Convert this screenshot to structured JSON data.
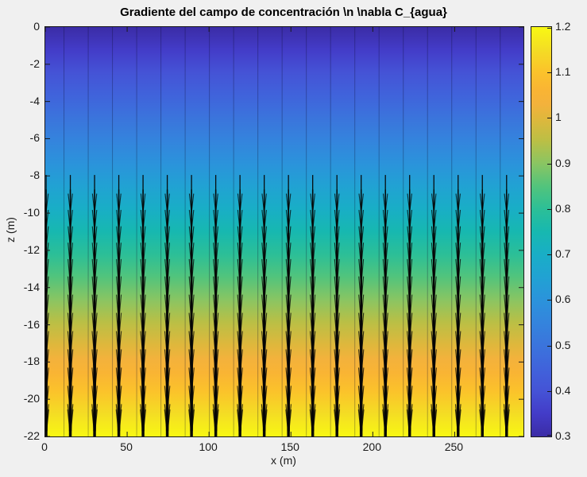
{
  "figure": {
    "background": "#F0F0F0",
    "kind": "MATLAB-style figure"
  },
  "chart_data": {
    "type": "heatmap",
    "overlay": "quiver",
    "title": "Gradiente del campo de concentración \\n \\nabla C_{agua}",
    "xlabel": "x (m)",
    "ylabel": "z (m)",
    "xlim": [
      0,
      292
    ],
    "ylim": [
      -22,
      0
    ],
    "x_ticks": [
      0,
      50,
      100,
      150,
      200,
      250
    ],
    "x_tick_labels": [
      "0",
      "50",
      "100",
      "150",
      "200",
      "250"
    ],
    "y_ticks": [
      0,
      -2,
      -4,
      -6,
      -8,
      -10,
      -12,
      -14,
      -16,
      -18,
      -20,
      -22
    ],
    "y_tick_labels": [
      "0",
      "-2",
      "-4",
      "-6",
      "-8",
      "-10",
      "-12",
      "-14",
      "-16",
      "-18",
      "-20",
      "-22"
    ],
    "heatmap_field": {
      "description": "concentration field, increases linearly with depth",
      "value_at_surface_z0": 0.3,
      "value_at_bottom_z-22": 1.2
    },
    "colorbar": {
      "min": 0.3,
      "max": 1.2,
      "ticks": [
        1.2,
        1.1,
        1.0,
        0.9,
        0.8,
        0.7,
        0.6,
        0.5,
        0.4,
        0.3
      ],
      "tick_labels": [
        "1.2",
        "1.1",
        "1",
        "0.9",
        "0.8",
        "0.7",
        "0.6",
        "0.5",
        "0.4",
        "0.3"
      ],
      "position": "right"
    },
    "colormap": [
      {
        "v": 0.3,
        "c": "#3B2CA6"
      },
      {
        "v": 0.35,
        "c": "#433CC8"
      },
      {
        "v": 0.4,
        "c": "#4553D6"
      },
      {
        "v": 0.45,
        "c": "#4063DB"
      },
      {
        "v": 0.5,
        "c": "#3B74DC"
      },
      {
        "v": 0.55,
        "c": "#3484DD"
      },
      {
        "v": 0.6,
        "c": "#2B93DB"
      },
      {
        "v": 0.65,
        "c": "#21A2D3"
      },
      {
        "v": 0.7,
        "c": "#19AEC6"
      },
      {
        "v": 0.75,
        "c": "#17B8B0"
      },
      {
        "v": 0.8,
        "c": "#2CBF97"
      },
      {
        "v": 0.85,
        "c": "#52C47C"
      },
      {
        "v": 0.9,
        "c": "#8AC562"
      },
      {
        "v": 0.95,
        "c": "#BBBF45"
      },
      {
        "v": 1.0,
        "c": "#E0B73C"
      },
      {
        "v": 1.03,
        "c": "#F3B23C"
      },
      {
        "v": 1.06,
        "c": "#F9B434"
      },
      {
        "v": 1.1,
        "c": "#FBC22B"
      },
      {
        "v": 1.15,
        "c": "#F4DD24"
      },
      {
        "v": 1.2,
        "c": "#F8F813"
      }
    ],
    "quiver": {
      "direction": "downward (toward increasing concentration)",
      "color": "#000000",
      "x_positions_m": [
        0.5,
        15.3,
        30.1,
        44.9,
        59.7,
        74.5,
        89.3,
        104.1,
        118.9,
        133.7,
        148.5,
        163.3,
        178.1,
        192.9,
        207.7,
        222.5,
        237.3,
        252.1,
        266.9,
        281.7
      ],
      "visible_from_depth_m": 8,
      "max_depth_m": 22,
      "arrows_per_column": 14,
      "base_depth_start_m": 7.95,
      "base_depth_step_m": 0.78,
      "length_start_m": 2.0,
      "length_step_m": 0.2
    },
    "grid": "vertical mesh edges between heatmap cells visible",
    "legend": "none"
  }
}
